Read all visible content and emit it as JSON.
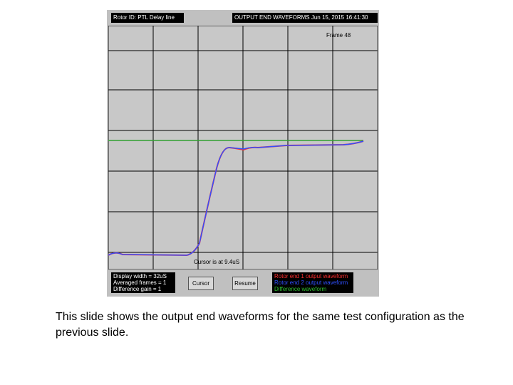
{
  "header": {
    "rotor_id": "Rotor ID: PTL Delay line",
    "title": "OUTPUT END WAVEFORMS  Jun 15, 2015  16:41:30"
  },
  "plot": {
    "frame": "Frame 48",
    "cursor": "Cursor is at 9.4uS"
  },
  "info": [
    "Display width = 32uS",
    "Averaged frames = 1",
    "Difference gain = 1"
  ],
  "buttons": [
    "Cursor",
    "Resume"
  ],
  "legend": [
    {
      "label": "Rotor end 1 output waveform",
      "color": "#ff3030"
    },
    {
      "label": "Rotor end 2 output waveform",
      "color": "#3050ff"
    },
    {
      "label": "Difference waveform",
      "color": "#30c030"
    }
  ],
  "caption": "This slide shows the output end waveforms for the same test configuration as the previous slide."
}
